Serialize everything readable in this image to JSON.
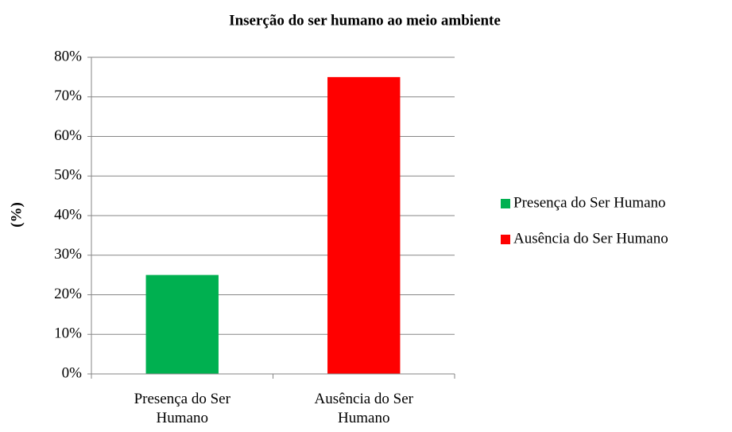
{
  "chart_data": {
    "type": "bar",
    "title": "Inserção do ser humano ao meio ambiente",
    "y_label": "(%)",
    "categories": [
      "Presença do Ser Humano",
      "Ausência do Ser Humano"
    ],
    "values": [
      25,
      75
    ],
    "colors": [
      "#00b050",
      "#ff0000"
    ],
    "ylim": [
      0,
      80
    ],
    "yticks": [
      {
        "value": 0,
        "label": "0%"
      },
      {
        "value": 10,
        "label": "10%"
      },
      {
        "value": 20,
        "label": "20%"
      },
      {
        "value": 30,
        "label": "30%"
      },
      {
        "value": 40,
        "label": "40%"
      },
      {
        "value": 50,
        "label": "50%"
      },
      {
        "value": 60,
        "label": "60%"
      },
      {
        "value": 70,
        "label": "70%"
      },
      {
        "value": 80,
        "label": "80%"
      }
    ],
    "grid": true,
    "legend": "right"
  }
}
